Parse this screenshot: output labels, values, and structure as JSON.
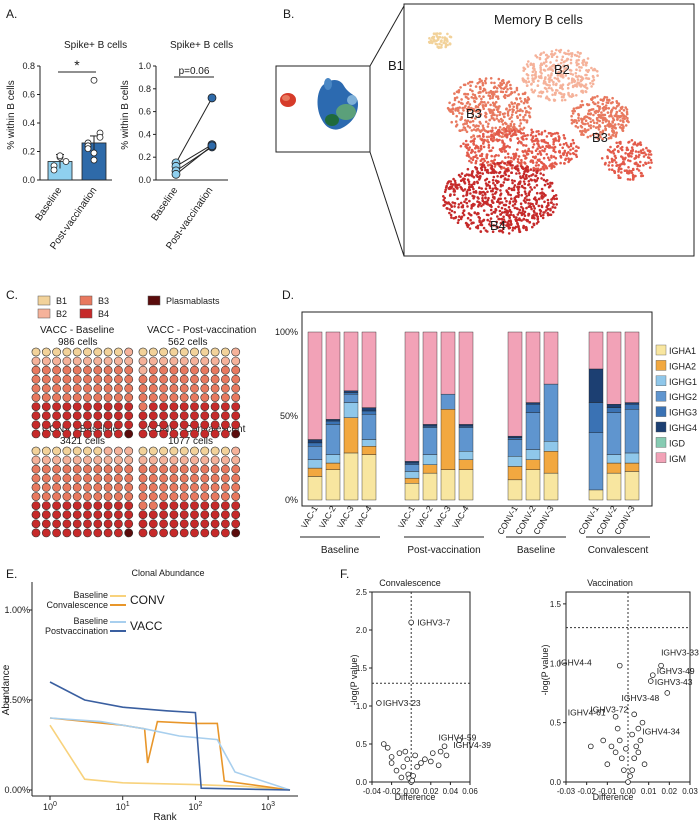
{
  "panel_letters": {
    "a": "A.",
    "b": "B.",
    "c": "C.",
    "d": "D.",
    "e": "E.",
    "f": "F."
  },
  "colors": {
    "B1": "#f2d29a",
    "B2": "#f5b29a",
    "B3": "#e8795f",
    "B4": "#c62a2a",
    "Plasmablasts": "#5a0c0c",
    "IGHA1": "#f8e6a0",
    "IGHA2": "#f2a840",
    "IGHG1": "#8fc7ea",
    "IGHG2": "#5f95cf",
    "IGHG3": "#3a72b4",
    "IGHG4": "#1c3f72",
    "IGD": "#86cbb2",
    "IGM": "#f2a2b7",
    "conv_baseline": "#f8d27c",
    "conv_convalescence": "#e8962a",
    "vacc_baseline": "#a8cfee",
    "vacc_postvaccination": "#3a5fa0",
    "significant_label": "#d42a2a"
  },
  "panel_a": {
    "left": {
      "title": "Spike+ B cells",
      "ylabel": "% within B cells",
      "yticks": [
        "0.0",
        "0.2",
        "0.4",
        "0.6",
        "0.8"
      ],
      "categories": [
        "Baseline",
        "Post-vaccination"
      ],
      "significance": "*",
      "chart_data": {
        "type": "bar",
        "categories": [
          "Baseline",
          "Post-vaccination"
        ],
        "values": [
          0.13,
          0.26
        ],
        "ylim": [
          0,
          0.8
        ],
        "points": [
          [
            0.1,
            0.16,
            0.13,
            0.07,
            0.17
          ],
          [
            0.26,
            0.19,
            0.33,
            0.24,
            0.14,
            0.3,
            0.22,
            0.7
          ]
        ]
      }
    },
    "right": {
      "title": "Spike+ B cells",
      "ylabel": "% within B cells",
      "yticks": [
        "0.0",
        "0.2",
        "0.4",
        "0.6",
        "0.8",
        "1.0"
      ],
      "categories": [
        "Baseline",
        "Post-vaccination"
      ],
      "significance": "p=0.06",
      "chart_data": {
        "type": "scatter",
        "ylim": [
          0,
          1.0
        ],
        "pairs": [
          [
            0.15,
            0.72
          ],
          [
            0.12,
            0.31
          ],
          [
            0.08,
            0.29
          ],
          [
            0.05,
            0.3
          ]
        ]
      }
    }
  },
  "panel_b": {
    "title": "Memory B cells",
    "clusters": [
      "B1",
      "B2",
      "B3",
      "B3",
      "B4"
    ]
  },
  "panel_c": {
    "legend": [
      "B1",
      "B2",
      "B3",
      "B4",
      "Plasmablasts"
    ],
    "grids": [
      {
        "title": "VACC - Baseline",
        "count": "986 cells",
        "composition": {
          "B1": 9,
          "B2": 11,
          "B3": 40,
          "B4": 39,
          "Plasmablasts": 1
        }
      },
      {
        "title": "VACC - Post-vaccination",
        "count": "562 cells",
        "composition": {
          "B1": 9,
          "B2": 12,
          "B3": 40,
          "B4": 38,
          "Plasmablasts": 1
        }
      },
      {
        "title": "CONV - Baseline",
        "count": "3421 cells",
        "composition": {
          "B1": 7,
          "B2": 13,
          "B3": 40,
          "B4": 39,
          "Plasmablasts": 1
        }
      },
      {
        "title": "CONV - Convalescent",
        "count": "1077 cells",
        "composition": {
          "B1": 9,
          "B2": 11,
          "B3": 42,
          "B4": 37,
          "Plasmablasts": 1
        }
      }
    ]
  },
  "panel_d": {
    "yticks": [
      "0%",
      "50%",
      "100%"
    ],
    "groups": [
      "Baseline",
      "Post-vaccination",
      "Baseline",
      "Convalescent"
    ],
    "legend": [
      "IGHA1",
      "IGHA2",
      "IGHG1",
      "IGHG2",
      "IGHG3",
      "IGHG4",
      "IGD",
      "IGM"
    ],
    "chart_data": {
      "type": "bar",
      "stacked": true,
      "ylim": [
        0,
        100
      ],
      "categories": [
        "VAC-1",
        "VAC-2",
        "VAC-3",
        "VAC-4",
        "VAC-1",
        "VAC-2",
        "VAC-3",
        "VAC-4",
        "CONV-1",
        "CONV-2",
        "CONV-3",
        "CONV-1",
        "CONV-2",
        "CONV-3"
      ],
      "series": [
        {
          "name": "IGHA1",
          "values": [
            14,
            18,
            28,
            27,
            10,
            16,
            18,
            18,
            12,
            18,
            16,
            6,
            16,
            17
          ]
        },
        {
          "name": "IGHA2",
          "values": [
            5,
            4,
            21,
            5,
            3,
            5,
            36,
            6,
            8,
            6,
            13,
            0,
            6,
            5
          ]
        },
        {
          "name": "IGHG1",
          "values": [
            5,
            5,
            9,
            4,
            4,
            6,
            0,
            5,
            6,
            6,
            6,
            0,
            5,
            6
          ]
        },
        {
          "name": "IGHG2",
          "values": [
            8,
            18,
            5,
            15,
            4,
            16,
            9,
            14,
            10,
            22,
            34,
            34,
            25,
            26
          ]
        },
        {
          "name": "IGHG3",
          "values": [
            2,
            2,
            1,
            2,
            1,
            1,
            0,
            1,
            1,
            5,
            0,
            18,
            3,
            3
          ]
        },
        {
          "name": "IGHG4",
          "values": [
            2,
            1,
            1,
            2,
            1,
            1,
            0,
            1,
            1,
            1,
            0,
            20,
            2,
            1
          ]
        },
        {
          "name": "IGD",
          "values": [
            0,
            0,
            0,
            0,
            0,
            0,
            0,
            0,
            0,
            0,
            0,
            0,
            0,
            0
          ]
        },
        {
          "name": "IGM",
          "values": [
            64,
            52,
            35,
            45,
            77,
            55,
            37,
            55,
            62,
            42,
            31,
            22,
            43,
            42
          ]
        }
      ]
    }
  },
  "panel_e": {
    "title": "Clonal Abundance",
    "xlabel": "Rank",
    "ylabel": "Abundance",
    "yticks": [
      "0.00%",
      "0.50%",
      "1.00%"
    ],
    "legend": {
      "conv_label1": "Baseline",
      "conv_label2": "Convalescence",
      "conv_name": "CONV",
      "vacc_label1": "Baseline",
      "vacc_label2": "Postvaccination",
      "vacc_name": "VACC"
    },
    "chart_data": {
      "type": "line",
      "xscale": "log",
      "xlim": [
        1,
        2000
      ],
      "ylim": [
        0,
        1.1
      ],
      "series": [
        {
          "name": "Baseline",
          "group": "CONV",
          "points": [
            [
              1,
              0.36
            ],
            [
              3,
              0.06
            ],
            [
              10,
              0.04
            ],
            [
              100,
              0.03
            ],
            [
              500,
              0.02
            ],
            [
              2000,
              0.0
            ]
          ]
        },
        {
          "name": "Convalescence",
          "group": "CONV",
          "points": [
            [
              1,
              0.4
            ],
            [
              10,
              0.36
            ],
            [
              20,
              0.34
            ],
            [
              22,
              0.15
            ],
            [
              30,
              0.38
            ],
            [
              100,
              0.37
            ],
            [
              200,
              0.37
            ],
            [
              250,
              0.05
            ],
            [
              2000,
              0.0
            ]
          ]
        },
        {
          "name": "Baseline",
          "group": "VACC",
          "points": [
            [
              1,
              0.4
            ],
            [
              5,
              0.38
            ],
            [
              20,
              0.34
            ],
            [
              60,
              0.3
            ],
            [
              200,
              0.28
            ],
            [
              350,
              0.1
            ],
            [
              2000,
              0.0
            ]
          ]
        },
        {
          "name": "Postvaccination",
          "group": "VACC",
          "points": [
            [
              1,
              0.6
            ],
            [
              3,
              0.5
            ],
            [
              10,
              0.46
            ],
            [
              40,
              0.44
            ],
            [
              100,
              0.43
            ],
            [
              120,
              0.01
            ],
            [
              2000,
              0.0
            ]
          ]
        }
      ]
    }
  },
  "panel_f": {
    "left": {
      "title": "Convalescence",
      "xlabel": "Difference",
      "ylabel": "-log(P value)",
      "xticks": [
        "-0.04",
        "-0.02",
        "0.00",
        "0.02",
        "0.04",
        "0.06"
      ],
      "yticks": [
        "0.0",
        "0.5",
        "1.0",
        "1.5",
        "2.0",
        "2.5"
      ],
      "chart_data": {
        "type": "scatter",
        "xlim": [
          -0.04,
          0.06
        ],
        "ylim": [
          0,
          2.5
        ],
        "labeled": [
          {
            "label": "IGHV3-7",
            "x": 0.0,
            "y": 2.1,
            "sig": true
          },
          {
            "label": "IGHV3-23",
            "x": -0.033,
            "y": 1.04,
            "sig": false
          },
          {
            "label": "IGHV4-59",
            "x": 0.034,
            "y": 0.47,
            "sig": true
          },
          {
            "label": "IGHV4-39",
            "x": 0.049,
            "y": 0.55,
            "sig": false
          }
        ],
        "points": [
          [
            -0.028,
            0.5
          ],
          [
            -0.024,
            0.45
          ],
          [
            -0.02,
            0.33
          ],
          [
            -0.02,
            0.25
          ],
          [
            -0.012,
            0.38
          ],
          [
            -0.008,
            0.2
          ],
          [
            -0.006,
            0.4
          ],
          [
            -0.004,
            0.3
          ],
          [
            -0.003,
            0.1
          ],
          [
            -0.002,
            0.05
          ],
          [
            0.0,
            0.0
          ],
          [
            0.001,
            0.02
          ],
          [
            0.002,
            0.08
          ],
          [
            -0.01,
            0.06
          ],
          [
            0.004,
            0.35
          ],
          [
            0.006,
            0.2
          ],
          [
            0.01,
            0.25
          ],
          [
            0.014,
            0.3
          ],
          [
            0.02,
            0.27
          ],
          [
            0.022,
            0.38
          ],
          [
            0.028,
            0.22
          ],
          [
            0.03,
            0.4
          ],
          [
            0.036,
            0.35
          ],
          [
            -0.015,
            0.15
          ]
        ]
      }
    },
    "right": {
      "title": "Vaccination",
      "xlabel": "Difference",
      "ylabel": "-log(P value)",
      "xticks": [
        "-0.03",
        "-0.02",
        "-0.01",
        "0.00",
        "0.01",
        "0.02",
        "0.03"
      ],
      "yticks": [
        "0.0",
        "0.5",
        "1.0",
        "1.5"
      ],
      "chart_data": {
        "type": "scatter",
        "xlim": [
          -0.03,
          0.03
        ],
        "ylim": [
          0,
          1.6
        ],
        "labeled": [
          {
            "label": "IGHV3-33",
            "x": 0.016,
            "y": 0.98,
            "sig": true
          },
          {
            "label": "IGHV3-49",
            "x": 0.012,
            "y": 0.9,
            "sig": true
          },
          {
            "label": "IGHV3-43",
            "x": 0.011,
            "y": 0.85,
            "sig": true
          },
          {
            "label": "IGHV4-4",
            "x": -0.004,
            "y": 0.98,
            "sig": false
          },
          {
            "label": "IGHV3-48",
            "x": 0.019,
            "y": 0.75,
            "sig": false
          },
          {
            "label": "IGHV4-61",
            "x": -0.006,
            "y": 0.55,
            "sig": false
          },
          {
            "label": "IGHV3-72",
            "x": 0.003,
            "y": 0.57,
            "sig": false
          },
          {
            "label": "IGHV4-34",
            "x": 0.005,
            "y": 0.45,
            "sig": false
          }
        ],
        "points": [
          [
            -0.018,
            0.3
          ],
          [
            -0.012,
            0.35
          ],
          [
            -0.008,
            0.3
          ],
          [
            -0.006,
            0.25
          ],
          [
            -0.004,
            0.35
          ],
          [
            -0.003,
            0.2
          ],
          [
            -0.002,
            0.1
          ],
          [
            0.0,
            0.0
          ],
          [
            0.001,
            0.05
          ],
          [
            0.002,
            0.1
          ],
          [
            0.003,
            0.2
          ],
          [
            0.004,
            0.3
          ],
          [
            0.005,
            0.25
          ],
          [
            0.006,
            0.35
          ],
          [
            0.007,
            0.5
          ],
          [
            0.008,
            0.15
          ],
          [
            -0.01,
            0.15
          ],
          [
            -0.005,
            0.45
          ],
          [
            0.002,
            0.4
          ],
          [
            -0.001,
            0.28
          ]
        ]
      }
    }
  }
}
